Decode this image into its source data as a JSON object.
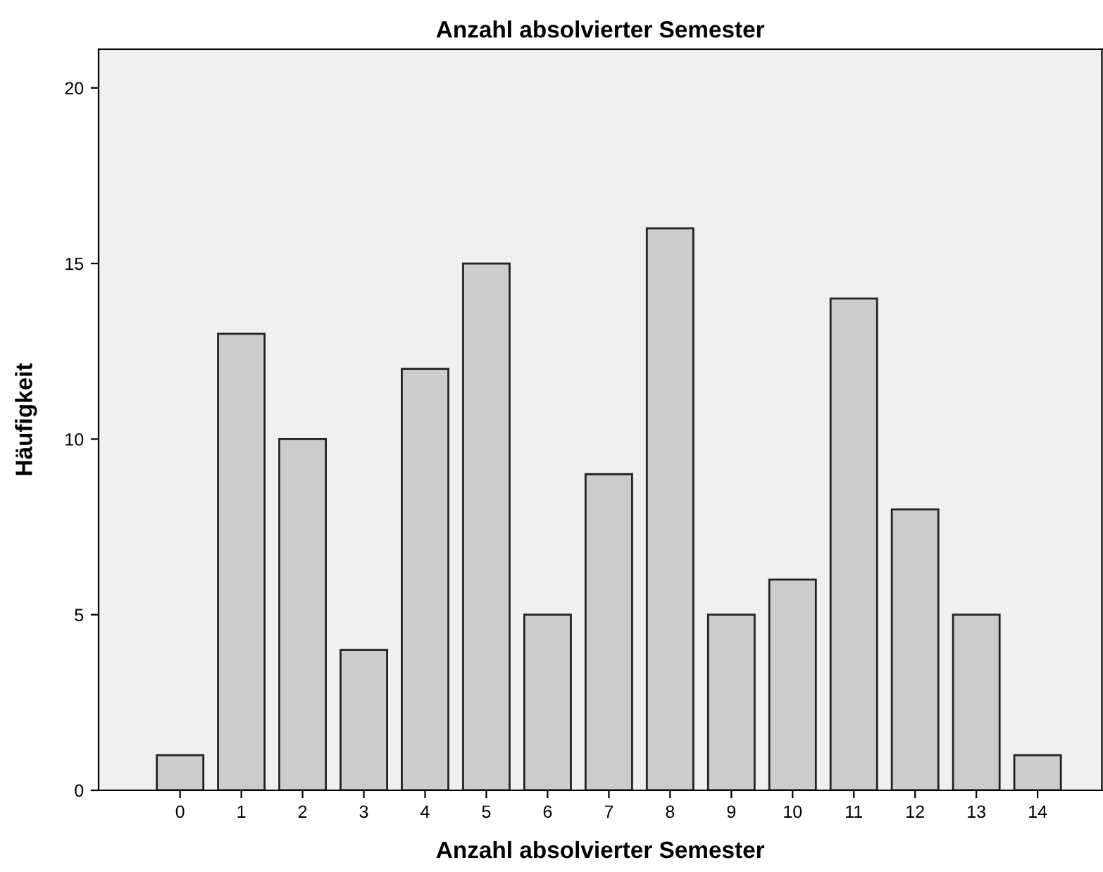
{
  "chart_data": {
    "type": "bar",
    "title": "Anzahl absolvierter Semester",
    "xlabel": "Anzahl absolvierter Semester",
    "ylabel": "Häufigkeit",
    "categories": [
      "0",
      "1",
      "2",
      "3",
      "4",
      "5",
      "6",
      "7",
      "8",
      "9",
      "10",
      "11",
      "12",
      "13",
      "14"
    ],
    "values": [
      1,
      13,
      10,
      4,
      12,
      15,
      5,
      9,
      16,
      5,
      6,
      14,
      8,
      5,
      1
    ],
    "color": "#cccccc",
    "ylim": [
      0,
      21.1
    ],
    "yticks": [
      0,
      5,
      10,
      15,
      20
    ],
    "grid": false
  }
}
